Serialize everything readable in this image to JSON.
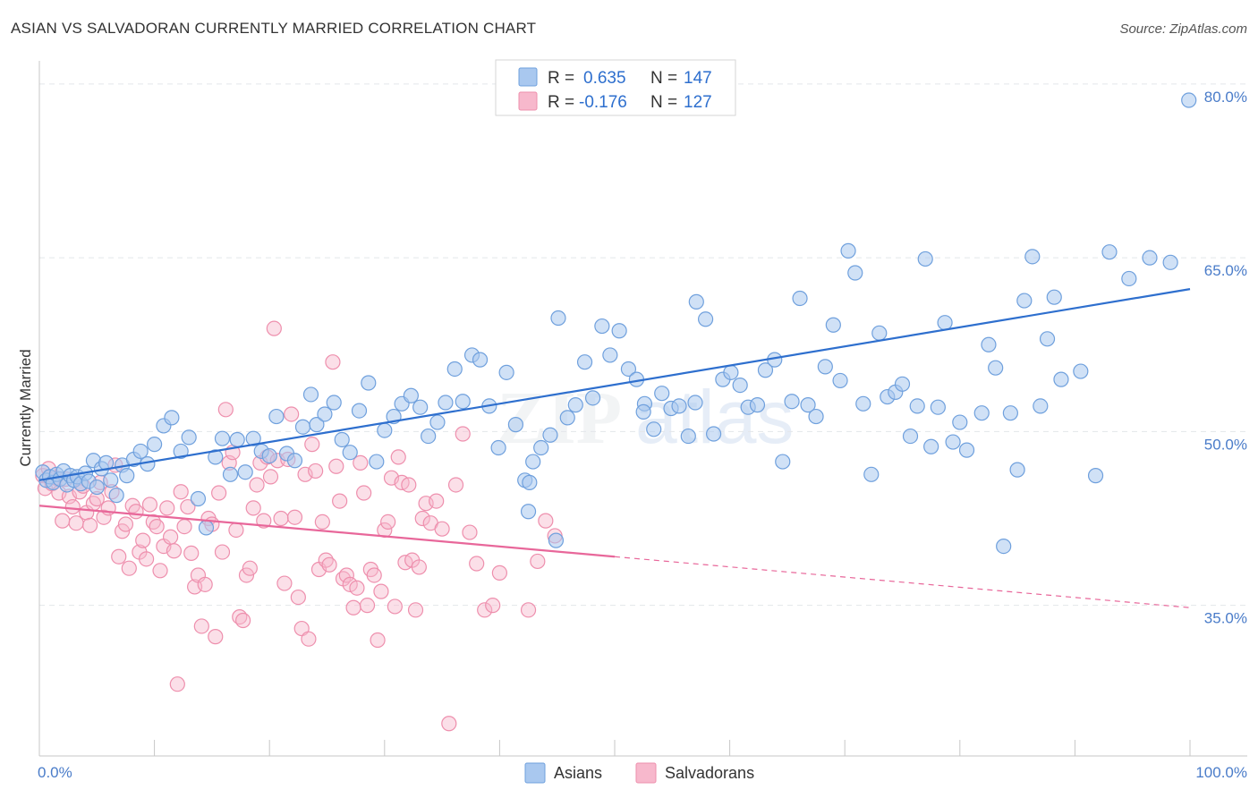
{
  "header": {
    "title": "ASIAN VS SALVADORAN CURRENTLY MARRIED CORRELATION CHART",
    "source": "Source: ZipAtlas.com"
  },
  "legend": {
    "asians": {
      "r_label": "R =",
      "r_value": "0.635",
      "n_label": "N =",
      "n_value": "147"
    },
    "salvadorans": {
      "r_label": "R =",
      "r_value": "-0.176",
      "n_label": "N =",
      "n_value": "127"
    }
  },
  "bottom_legend": {
    "asians": "Asians",
    "salvadorans": "Salvadorans"
  },
  "colors": {
    "asians_fill": "#a9c8ef",
    "asians_stroke": "#6fa0dd",
    "asians_line": "#2e6fce",
    "salvadorans_fill": "#f7b8cc",
    "salvadorans_stroke": "#ee8fad",
    "salvadorans_line": "#e8679a",
    "value_text": "#2e6fce",
    "grid": "#e3e6ea"
  },
  "chart_data": {
    "type": "scatter",
    "title": "ASIAN VS SALVADORAN CURRENTLY MARRIED CORRELATION CHART",
    "xlabel": "",
    "ylabel": "Currently Married",
    "xlim": [
      0,
      100
    ],
    "ylim": [
      22,
      82
    ],
    "x_tick_labels": [
      "0.0%",
      "100.0%"
    ],
    "y_ticks": [
      35,
      50,
      65,
      80
    ],
    "y_tick_labels": [
      "35.0%",
      "50.0%",
      "65.0%",
      "80.0%"
    ],
    "grid": "dashed horizontal",
    "legend_position": "top-center",
    "watermark": "ZIPatlas",
    "series": [
      {
        "name": "Asians",
        "r": 0.635,
        "n": 147,
        "trend": {
          "x": [
            0,
            100
          ],
          "y": [
            45.8,
            62.3
          ],
          "style": "solid"
        },
        "points": [
          [
            0.3,
            46.5
          ],
          [
            0.6,
            45.8
          ],
          [
            0.9,
            46.1
          ],
          [
            1.2,
            45.6
          ],
          [
            1.5,
            46.3
          ],
          [
            1.8,
            45.9
          ],
          [
            2.1,
            46.6
          ],
          [
            2.4,
            45.4
          ],
          [
            2.7,
            46.2
          ],
          [
            3.0,
            45.8
          ],
          [
            3.3,
            46.1
          ],
          [
            3.6,
            45.5
          ],
          [
            4.0,
            46.4
          ],
          [
            4.3,
            45.7
          ],
          [
            4.7,
            47.5
          ],
          [
            5.0,
            45.2
          ],
          [
            5.4,
            46.8
          ],
          [
            5.8,
            47.3
          ],
          [
            6.2,
            45.8
          ],
          [
            6.7,
            44.5
          ],
          [
            7.2,
            47.1
          ],
          [
            7.6,
            46.2
          ],
          [
            8.2,
            47.6
          ],
          [
            8.8,
            48.3
          ],
          [
            9.4,
            47.2
          ],
          [
            10.0,
            48.9
          ],
          [
            10.8,
            50.5
          ],
          [
            11.5,
            51.2
          ],
          [
            12.3,
            48.3
          ],
          [
            13.0,
            49.5
          ],
          [
            13.8,
            44.2
          ],
          [
            14.5,
            41.7
          ],
          [
            15.3,
            47.8
          ],
          [
            15.9,
            49.4
          ],
          [
            16.6,
            46.3
          ],
          [
            17.2,
            49.3
          ],
          [
            17.9,
            46.5
          ],
          [
            18.6,
            49.4
          ],
          [
            19.3,
            48.3
          ],
          [
            20.0,
            47.9
          ],
          [
            20.6,
            51.3
          ],
          [
            21.5,
            48.1
          ],
          [
            22.2,
            47.5
          ],
          [
            22.9,
            50.4
          ],
          [
            23.6,
            53.2
          ],
          [
            24.1,
            50.6
          ],
          [
            24.8,
            51.5
          ],
          [
            25.6,
            52.5
          ],
          [
            26.3,
            49.3
          ],
          [
            27.0,
            48.2
          ],
          [
            27.8,
            51.8
          ],
          [
            28.6,
            54.2
          ],
          [
            29.3,
            47.4
          ],
          [
            30.0,
            50.1
          ],
          [
            30.8,
            51.3
          ],
          [
            31.5,
            52.4
          ],
          [
            32.3,
            53.1
          ],
          [
            33.1,
            52.1
          ],
          [
            33.8,
            49.6
          ],
          [
            34.6,
            50.8
          ],
          [
            35.3,
            52.5
          ],
          [
            36.1,
            55.4
          ],
          [
            36.8,
            52.6
          ],
          [
            37.6,
            56.6
          ],
          [
            38.3,
            56.2
          ],
          [
            39.1,
            52.2
          ],
          [
            39.9,
            48.6
          ],
          [
            40.6,
            55.1
          ],
          [
            41.4,
            50.6
          ],
          [
            42.2,
            45.8
          ],
          [
            42.9,
            47.4
          ],
          [
            43.6,
            48.6
          ],
          [
            44.4,
            49.7
          ],
          [
            45.1,
            59.8
          ],
          [
            45.9,
            51.2
          ],
          [
            46.6,
            52.3
          ],
          [
            47.4,
            56.0
          ],
          [
            48.1,
            52.9
          ],
          [
            48.9,
            59.1
          ],
          [
            49.6,
            56.6
          ],
          [
            50.4,
            58.7
          ],
          [
            51.2,
            55.4
          ],
          [
            51.9,
            54.5
          ],
          [
            52.6,
            52.4
          ],
          [
            53.4,
            50.2
          ],
          [
            54.1,
            53.3
          ],
          [
            54.9,
            52.0
          ],
          [
            55.6,
            52.2
          ],
          [
            56.4,
            49.6
          ],
          [
            57.1,
            61.2
          ],
          [
            57.9,
            59.7
          ],
          [
            58.6,
            49.8
          ],
          [
            59.4,
            54.5
          ],
          [
            60.1,
            55.1
          ],
          [
            60.9,
            54.0
          ],
          [
            61.6,
            52.1
          ],
          [
            62.4,
            52.3
          ],
          [
            63.1,
            55.3
          ],
          [
            63.9,
            56.2
          ],
          [
            64.6,
            47.4
          ],
          [
            65.4,
            52.6
          ],
          [
            66.1,
            61.5
          ],
          [
            66.8,
            52.3
          ],
          [
            67.5,
            51.3
          ],
          [
            68.3,
            55.6
          ],
          [
            69.0,
            59.2
          ],
          [
            69.6,
            54.4
          ],
          [
            70.3,
            65.6
          ],
          [
            70.9,
            63.7
          ],
          [
            71.6,
            52.4
          ],
          [
            72.3,
            46.3
          ],
          [
            73.0,
            58.5
          ],
          [
            73.7,
            53.0
          ],
          [
            74.4,
            53.4
          ],
          [
            75.0,
            54.1
          ],
          [
            75.7,
            49.6
          ],
          [
            76.3,
            52.2
          ],
          [
            77.0,
            64.9
          ],
          [
            77.5,
            48.7
          ],
          [
            78.1,
            52.1
          ],
          [
            78.7,
            59.4
          ],
          [
            79.4,
            49.1
          ],
          [
            80.0,
            50.8
          ],
          [
            80.6,
            48.4
          ],
          [
            81.9,
            51.6
          ],
          [
            82.5,
            57.5
          ],
          [
            83.1,
            55.5
          ],
          [
            83.8,
            40.1
          ],
          [
            84.4,
            51.6
          ],
          [
            85.0,
            46.7
          ],
          [
            85.6,
            61.3
          ],
          [
            86.3,
            65.1
          ],
          [
            87.0,
            52.2
          ],
          [
            87.6,
            58.0
          ],
          [
            88.2,
            61.6
          ],
          [
            88.8,
            54.5
          ],
          [
            90.5,
            55.2
          ],
          [
            93.0,
            65.5
          ],
          [
            94.7,
            63.2
          ],
          [
            96.5,
            65.0
          ],
          [
            99.9,
            78.6
          ],
          [
            98.3,
            64.6
          ],
          [
            42.6,
            45.6
          ],
          [
            52.5,
            51.7
          ],
          [
            57.0,
            52.5
          ],
          [
            42.5,
            43.1
          ],
          [
            91.8,
            46.2
          ],
          [
            44.9,
            40.6
          ]
        ]
      },
      {
        "name": "Salvadorans",
        "r": -0.176,
        "n": 127,
        "trend": {
          "x": [
            0,
            100
          ],
          "y": [
            43.6,
            34.8
          ],
          "solid_until_x": 50
        },
        "points": [
          [
            0.3,
            46.2
          ],
          [
            0.5,
            45.1
          ],
          [
            0.8,
            46.8
          ],
          [
            1.1,
            45.5
          ],
          [
            1.4,
            46.0
          ],
          [
            1.7,
            44.7
          ],
          [
            2.0,
            42.3
          ],
          [
            2.3,
            45.9
          ],
          [
            2.6,
            44.4
          ],
          [
            2.9,
            43.5
          ],
          [
            3.2,
            42.1
          ],
          [
            3.5,
            44.8
          ],
          [
            3.8,
            45.3
          ],
          [
            4.1,
            43.0
          ],
          [
            4.4,
            41.9
          ],
          [
            4.7,
            43.8
          ],
          [
            5.0,
            44.2
          ],
          [
            5.3,
            45.6
          ],
          [
            5.6,
            42.6
          ],
          [
            6.0,
            43.4
          ],
          [
            6.3,
            44.8
          ],
          [
            6.6,
            47.1
          ],
          [
            6.9,
            39.2
          ],
          [
            7.2,
            41.4
          ],
          [
            7.5,
            42.0
          ],
          [
            7.8,
            38.2
          ],
          [
            8.1,
            43.6
          ],
          [
            8.4,
            43.1
          ],
          [
            8.7,
            39.6
          ],
          [
            9.0,
            40.6
          ],
          [
            9.3,
            39.0
          ],
          [
            9.6,
            43.7
          ],
          [
            9.9,
            42.2
          ],
          [
            10.2,
            41.8
          ],
          [
            10.5,
            38.0
          ],
          [
            10.8,
            40.1
          ],
          [
            11.1,
            43.4
          ],
          [
            11.4,
            40.9
          ],
          [
            11.7,
            39.7
          ],
          [
            12.0,
            28.2
          ],
          [
            12.3,
            44.8
          ],
          [
            12.6,
            41.8
          ],
          [
            12.9,
            43.5
          ],
          [
            13.2,
            39.5
          ],
          [
            13.5,
            36.6
          ],
          [
            13.8,
            37.6
          ],
          [
            14.1,
            33.2
          ],
          [
            14.4,
            36.8
          ],
          [
            14.7,
            42.5
          ],
          [
            15.0,
            42.0
          ],
          [
            15.3,
            32.3
          ],
          [
            15.6,
            44.7
          ],
          [
            15.9,
            39.6
          ],
          [
            16.2,
            51.9
          ],
          [
            16.5,
            47.3
          ],
          [
            16.8,
            48.2
          ],
          [
            17.1,
            41.5
          ],
          [
            17.4,
            34.0
          ],
          [
            17.7,
            33.7
          ],
          [
            18.0,
            37.6
          ],
          [
            18.3,
            38.2
          ],
          [
            18.6,
            43.4
          ],
          [
            18.9,
            45.4
          ],
          [
            19.2,
            47.3
          ],
          [
            19.5,
            42.3
          ],
          [
            19.8,
            47.8
          ],
          [
            20.1,
            46.1
          ],
          [
            20.4,
            58.9
          ],
          [
            20.7,
            47.5
          ],
          [
            21.0,
            42.5
          ],
          [
            21.3,
            36.9
          ],
          [
            21.6,
            47.6
          ],
          [
            21.9,
            51.5
          ],
          [
            22.2,
            42.6
          ],
          [
            22.5,
            35.7
          ],
          [
            22.8,
            33.0
          ],
          [
            23.1,
            46.3
          ],
          [
            23.4,
            32.1
          ],
          [
            23.7,
            48.9
          ],
          [
            24.0,
            46.6
          ],
          [
            24.3,
            38.1
          ],
          [
            24.6,
            42.2
          ],
          [
            24.9,
            38.9
          ],
          [
            25.2,
            38.5
          ],
          [
            25.5,
            56.0
          ],
          [
            25.8,
            47.0
          ],
          [
            26.1,
            44.0
          ],
          [
            26.4,
            37.3
          ],
          [
            26.7,
            37.6
          ],
          [
            27.0,
            36.8
          ],
          [
            27.3,
            34.8
          ],
          [
            27.6,
            36.5
          ],
          [
            27.9,
            47.3
          ],
          [
            28.2,
            44.7
          ],
          [
            28.5,
            35.0
          ],
          [
            28.8,
            38.1
          ],
          [
            29.1,
            37.6
          ],
          [
            29.4,
            32.0
          ],
          [
            29.7,
            36.2
          ],
          [
            30.0,
            41.5
          ],
          [
            30.3,
            42.2
          ],
          [
            30.6,
            46.0
          ],
          [
            30.9,
            34.9
          ],
          [
            31.2,
            47.8
          ],
          [
            31.5,
            45.6
          ],
          [
            31.8,
            38.7
          ],
          [
            32.1,
            45.4
          ],
          [
            32.4,
            38.9
          ],
          [
            32.7,
            34.6
          ],
          [
            33.0,
            38.3
          ],
          [
            33.3,
            42.5
          ],
          [
            33.6,
            43.8
          ],
          [
            34.0,
            42.1
          ],
          [
            34.5,
            44.0
          ],
          [
            35.0,
            41.6
          ],
          [
            35.6,
            24.8
          ],
          [
            36.2,
            45.4
          ],
          [
            36.8,
            49.8
          ],
          [
            37.4,
            41.3
          ],
          [
            38.0,
            38.6
          ],
          [
            38.7,
            34.6
          ],
          [
            39.4,
            35.0
          ],
          [
            40.0,
            37.8
          ],
          [
            42.5,
            34.6
          ],
          [
            43.3,
            38.8
          ],
          [
            44.0,
            42.3
          ],
          [
            44.8,
            41.0
          ]
        ]
      }
    ]
  }
}
